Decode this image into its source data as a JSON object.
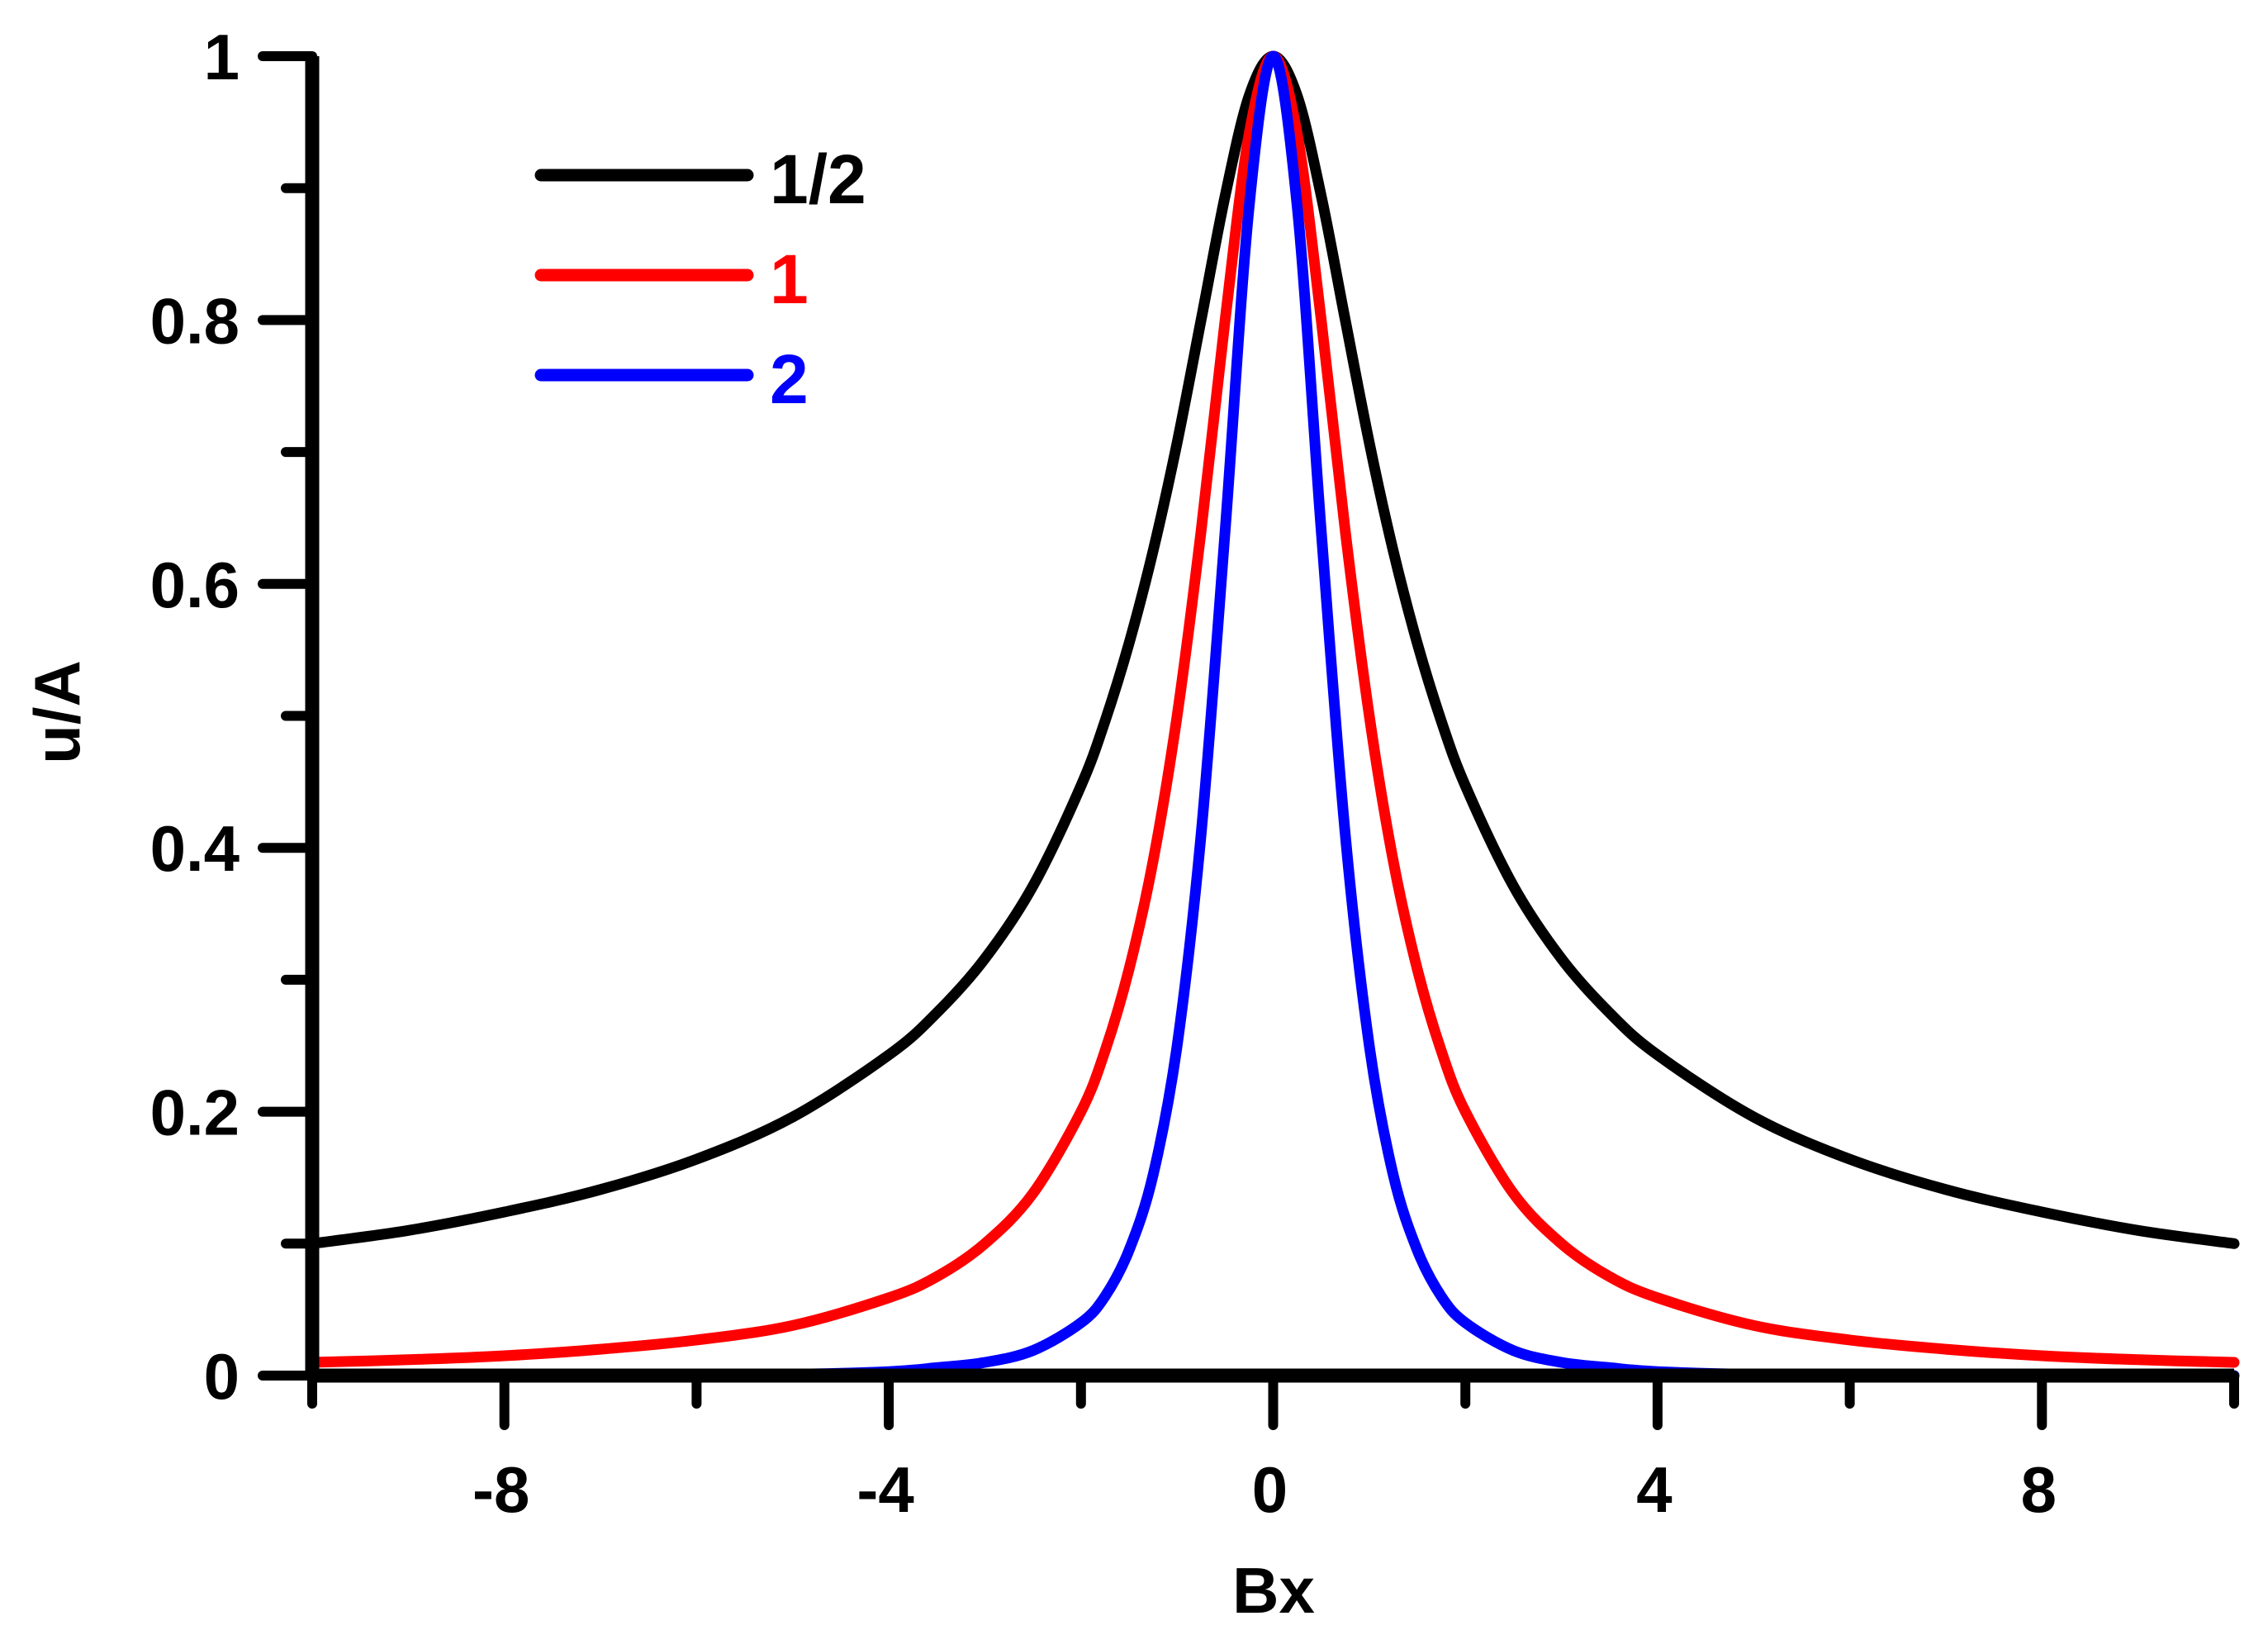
{
  "chart_data": {
    "type": "line",
    "title": "",
    "xlabel": "Bx",
    "ylabel": "u/A",
    "xlim": [
      -10,
      10
    ],
    "ylim": [
      0,
      1
    ],
    "grid": false,
    "legend_position": "upper-left inside",
    "x_major_ticks": [
      -8,
      -4,
      0,
      4,
      8
    ],
    "x_minor_ticks": [
      -10,
      -6,
      -2,
      2,
      6,
      10
    ],
    "x_tick_labels": [
      "-8",
      "-4",
      "0",
      "4",
      "8"
    ],
    "y_major_ticks": [
      0,
      0.2,
      0.4,
      0.6,
      0.8,
      1
    ],
    "y_minor_ticks": [
      0.1,
      0.3,
      0.5,
      0.7,
      0.9
    ],
    "y_tick_labels": [
      "0",
      "0.2",
      "0.4",
      "0.6",
      "0.8",
      "1"
    ],
    "x": [
      -10,
      -9,
      -8,
      -7,
      -6,
      -5,
      -4,
      -3.5,
      -3,
      -2.5,
      -2,
      -1.75,
      -1.5,
      -1.25,
      -1,
      -0.75,
      -0.5,
      -0.25,
      0,
      0.25,
      0.5,
      0.75,
      1,
      1.25,
      1.5,
      1.75,
      2,
      2.5,
      3,
      3.5,
      4,
      5,
      6,
      7,
      8,
      9,
      10
    ],
    "series": [
      {
        "name": "1/2",
        "color": "#000000",
        "values": [
          0.1,
          0.11,
          0.124,
          0.141,
          0.164,
          0.196,
          0.243,
          0.275,
          0.316,
          0.371,
          0.447,
          0.496,
          0.555,
          0.625,
          0.707,
          0.8,
          0.894,
          0.97,
          1.0,
          0.97,
          0.894,
          0.8,
          0.707,
          0.625,
          0.555,
          0.496,
          0.447,
          0.371,
          0.316,
          0.275,
          0.243,
          0.196,
          0.164,
          0.141,
          0.124,
          0.11,
          0.1
        ]
      },
      {
        "name": "1",
        "color": "#ff0000",
        "values": [
          0.01,
          0.012,
          0.015,
          0.02,
          0.027,
          0.038,
          0.059,
          0.075,
          0.1,
          0.138,
          0.2,
          0.246,
          0.308,
          0.39,
          0.5,
          0.64,
          0.8,
          0.941,
          1.0,
          0.941,
          0.8,
          0.64,
          0.5,
          0.39,
          0.308,
          0.246,
          0.2,
          0.138,
          0.1,
          0.075,
          0.059,
          0.038,
          0.027,
          0.02,
          0.015,
          0.012,
          0.01
        ]
      },
      {
        "name": "2",
        "color": "#0000ff",
        "values": [
          0.0,
          0.0,
          0.0,
          0.0,
          0.001,
          0.001,
          0.003,
          0.006,
          0.01,
          0.019,
          0.04,
          0.06,
          0.095,
          0.152,
          0.25,
          0.41,
          0.64,
          0.886,
          1.0,
          0.886,
          0.64,
          0.41,
          0.25,
          0.152,
          0.095,
          0.06,
          0.04,
          0.019,
          0.01,
          0.006,
          0.003,
          0.001,
          0.001,
          0.0,
          0.0,
          0.0,
          0.0
        ]
      }
    ]
  },
  "legend": {
    "items": [
      {
        "label": "1/2",
        "color": "#000000"
      },
      {
        "label": "1",
        "color": "#ff0000"
      },
      {
        "label": "2",
        "color": "#0000ff"
      }
    ]
  },
  "axes": {
    "x_title": "Bx",
    "y_title": "u/A"
  }
}
